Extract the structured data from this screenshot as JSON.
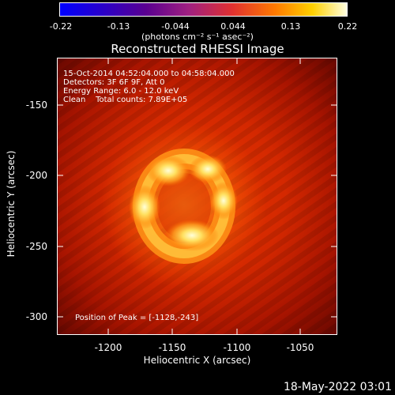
{
  "colorbar": {
    "ticks": [
      "-0.22",
      "-0.13",
      "-0.044",
      "0.044",
      "0.13",
      "0.22"
    ],
    "units": "(photons cm⁻² s⁻¹ asec⁻²)"
  },
  "title": "Reconstructed RHESSI Image",
  "annotations": {
    "line1": "15-Oct-2014 04:52:04.000 to 04:58:04.000",
    "line2": "Detectors: 3F 6F 9F, Att 0",
    "line3": "Energy Range: 6.0 - 12.0 keV",
    "line4": "Clean    Total counts: 7.89E+05",
    "peak": "Position of Peak = [-1128,-243]"
  },
  "axes": {
    "xlabel": "Heliocentric X (arcsec)",
    "ylabel": "Heliocentric Y (arcsec)",
    "xticks": [
      "-1200",
      "-1150",
      "-1100",
      "-1050"
    ],
    "yticks": [
      "-150",
      "-200",
      "-250",
      "-300"
    ]
  },
  "footer_date": "18-May-2022 03:01"
}
